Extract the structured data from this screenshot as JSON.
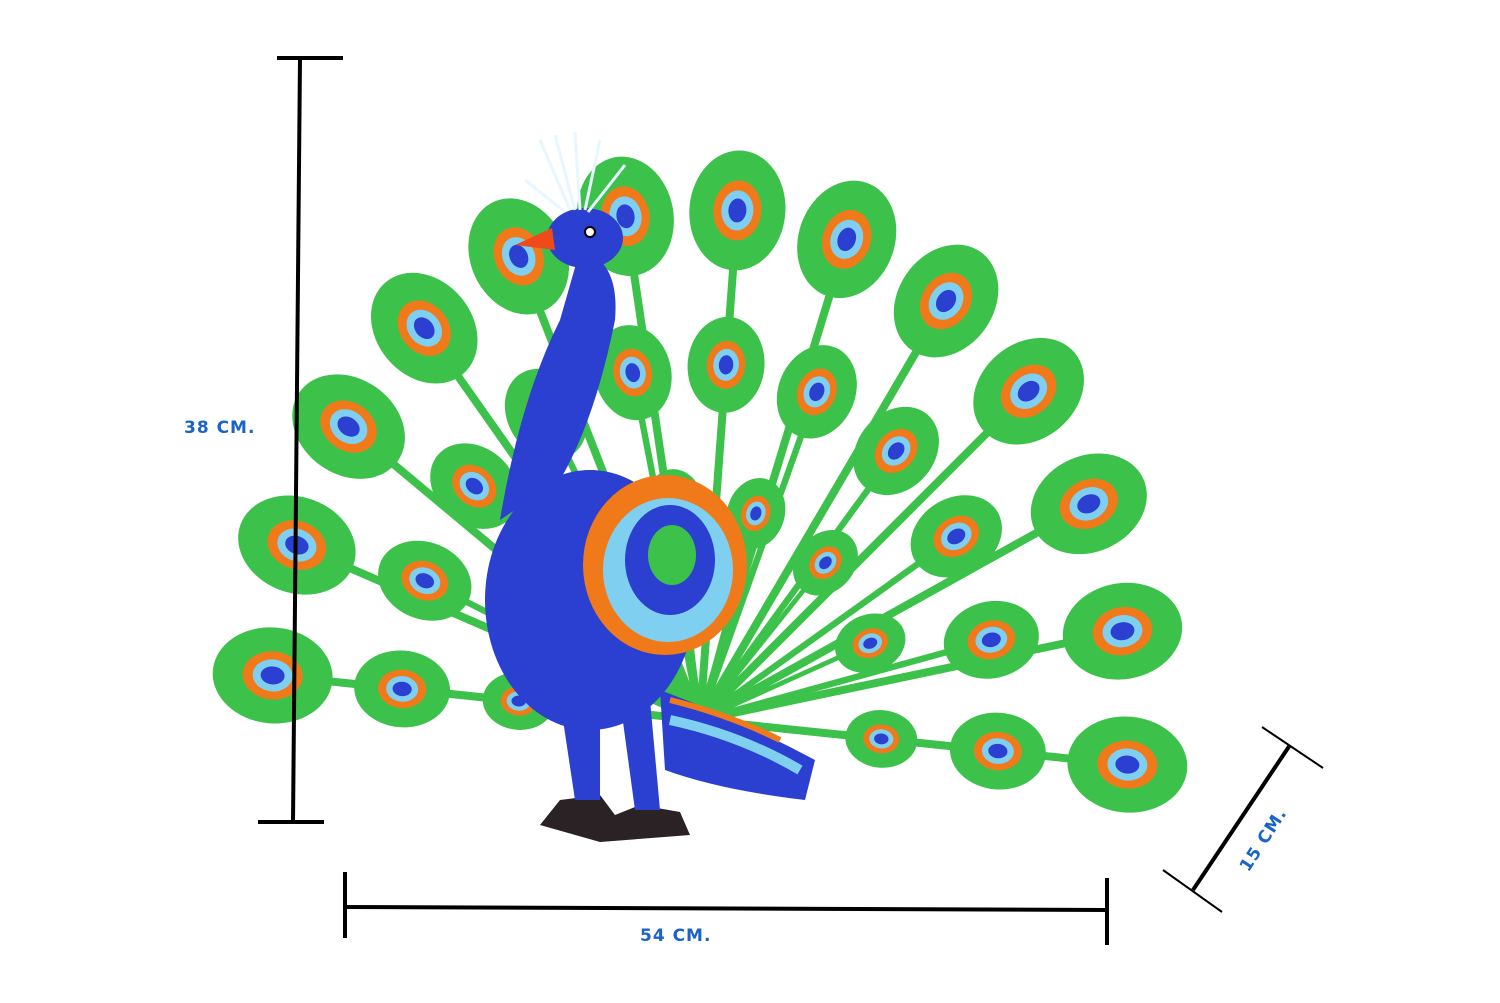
{
  "dimensions": {
    "height_label": "38 CM.",
    "width_label": "54 CM.",
    "depth_label": "15 CM."
  },
  "colors": {
    "label": "#1a63c8",
    "line": "#000000",
    "feather_green": "#3cc24a",
    "body_blue": "#2b3fd0",
    "accent_orange": "#f07a1a",
    "light_blue": "#7fd0f0",
    "feet": "#2a2224"
  },
  "subject": {
    "icon": "origami-peacock-icon"
  }
}
